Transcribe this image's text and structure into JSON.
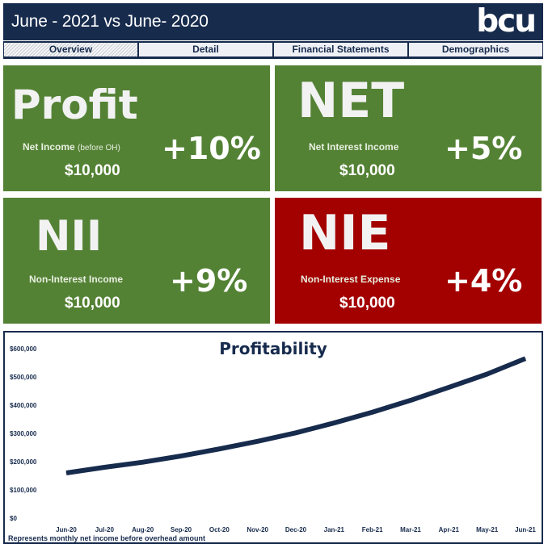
{
  "header": {
    "title": "June - 2021 vs June- 2020",
    "logo": "bcu"
  },
  "tabs": [
    {
      "label": "Overview",
      "active": true
    },
    {
      "label": "Detail",
      "active": false
    },
    {
      "label": "Financial Statements",
      "active": false
    },
    {
      "label": "Demographics",
      "active": false
    }
  ],
  "cards": {
    "profit": {
      "big": "Profit",
      "label": "Net Income",
      "label_note": "(before OH)",
      "amount": "$10,000",
      "change": "+10%",
      "color": "#548235"
    },
    "net": {
      "big": "NET",
      "label": "Net Interest Income",
      "amount": "$10,000",
      "change": "+5%",
      "color": "#548235"
    },
    "nii": {
      "big": "NII",
      "label": "Non-Interest Income",
      "amount": "$10,000",
      "change": "+9%",
      "color": "#548235"
    },
    "nie": {
      "big": "NIE",
      "label": "Non-Interest Expense",
      "amount": "$10,000",
      "change": "+4%",
      "color": "#a30000"
    }
  },
  "footnote": "Represents monthly net income before overhead amount",
  "chart_data": {
    "type": "line",
    "title": "Profitability",
    "categories": [
      "Jun-20",
      "Jul-20",
      "Aug-20",
      "Sep-20",
      "Oct-20",
      "Nov-20",
      "Dec-20",
      "Jan-21",
      "Feb-21",
      "Mar-21",
      "Apr-21",
      "May-21",
      "Jun-21"
    ],
    "series": [
      {
        "values": [
          160000,
          180000,
          198000,
          220000,
          245000,
          272000,
          302000,
          337000,
          375000,
          417000,
          463000,
          510000,
          565000
        ],
        "color": "#172b4d"
      }
    ],
    "y_ticks": [
      "$0",
      "$100,000",
      "$200,000",
      "$300,000",
      "$400,000",
      "$500,000",
      "$600,000"
    ],
    "ylim": [
      0,
      600000
    ],
    "grid": false
  }
}
